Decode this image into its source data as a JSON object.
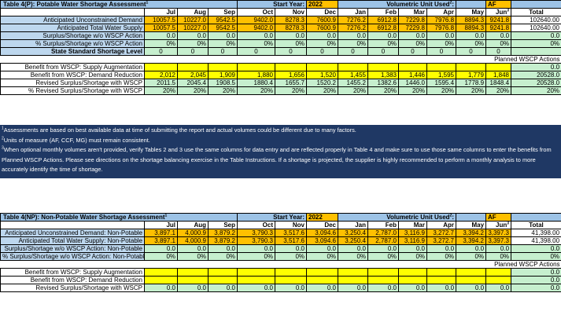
{
  "table_p": {
    "title": "Table 4(P): Potable Water Shortage Assessment",
    "title_sup": "1",
    "start_year_label": "Start Year:",
    "start_year": "2022",
    "unit_label": "Volumetric Unit Used",
    "unit_sup": "2",
    "unit_colon": ":",
    "unit": "AF",
    "months": [
      "Jul",
      "Aug",
      "Sep",
      "Oct",
      "Nov",
      "Dec",
      "Jan",
      "Feb",
      "Mar",
      "Apr",
      "May",
      "Jun"
    ],
    "jun_sup": "3",
    "total_label": "Total",
    "rows": {
      "demand": {
        "label": "Anticipated Unconstrained Demand",
        "values": [
          "10057.5",
          "10227.0",
          "9542.5",
          "9402.0",
          "8278.3",
          "7600.9",
          "7276.2",
          "6912.8",
          "7229.8",
          "7976.8",
          "8894.3",
          "9241.8"
        ],
        "total": "102640.00"
      },
      "supply": {
        "label": "Anticipated Total Water Supply",
        "values": [
          "10057.5",
          "10227.0",
          "9542.5",
          "9402.0",
          "8278.3",
          "7600.9",
          "7276.2",
          "6912.8",
          "7229.8",
          "7976.8",
          "8894.3",
          "9241.8"
        ],
        "total": "102640.00"
      },
      "surplus": {
        "label": "Surplus/Shortage w/o WSCP Action",
        "values": [
          "0.0",
          "0.0",
          "0.0",
          "0.0",
          "0.0",
          "0.0",
          "0.0",
          "0.0",
          "0.0",
          "0.0",
          "0.0",
          "0.0"
        ],
        "total": "0.0"
      },
      "pct_surplus": {
        "label": "% Surplus/Shortage w/o WSCP Action",
        "values": [
          "0%",
          "0%",
          "0%",
          "0%",
          "0%",
          "0%",
          "0%",
          "0%",
          "0%",
          "0%",
          "0%",
          "0%"
        ],
        "total": "0%"
      },
      "level": {
        "label": "State Standard Shortage Level",
        "values": [
          "0",
          "0",
          "0",
          "0",
          "0",
          "0",
          "0",
          "0",
          "0",
          "0",
          "0",
          "0"
        ],
        "total": ""
      },
      "planned": {
        "label": "Planned WSCP Actions"
      },
      "supply_aug": {
        "label": "Benefit from WSCP:  Supply Augmentation",
        "values": [
          "",
          "",
          "",
          "",
          "",
          "",
          "",
          "",
          "",
          "",
          "",
          ""
        ],
        "total": "0.0"
      },
      "demand_red": {
        "label": "Benefit from WSCP:  Demand Reduction",
        "values": [
          "2,012",
          "2,045",
          "1,909",
          "1,880",
          "1,656",
          "1,520",
          "1,455",
          "1,383",
          "1,446",
          "1,595",
          "1,779",
          "1,848"
        ],
        "total": "20528.0"
      },
      "revised": {
        "label": "Revised Surplus/Shortage with WSCP",
        "values": [
          "2011.5",
          "2045.4",
          "1908.5",
          "1880.4",
          "1655.7",
          "1520.2",
          "1455.2",
          "1382.6",
          "1446.0",
          "1595.4",
          "1778.9",
          "1848.4"
        ],
        "total": "20528.0"
      },
      "pct_revised": {
        "label": "% Revised Surplus/Shortage with WSCP",
        "values": [
          "20%",
          "20%",
          "20%",
          "20%",
          "20%",
          "20%",
          "20%",
          "20%",
          "20%",
          "20%",
          "20%",
          "20%"
        ],
        "total": "20%"
      }
    },
    "notes": [
      {
        "sup": "1",
        "text": "Assessments are based on best available data at time of submitting the report and actual volumes could be different due to many factors."
      },
      {
        "sup": "2",
        "text": "Units of measure (AF, CCF, MG) must remain consistent."
      },
      {
        "sup": "3",
        "text": "When optional monthly volumes aren't provided, verify Tables 2 and 3 use the same columns for data entry and are reflected properly in Table 4 and make sure to use those same columns to enter the benefits from Planned WSCP Actions. Please see directions on the shortage balancing exercise in the Table Instructions. If a shortage is projected, the supplier is highly recommended to perform a monthly analysis to more accurately identify the time of shortage."
      }
    ]
  },
  "table_np": {
    "title": "Table 4(NP): Non-Potable Water Shortage Assessment",
    "title_sup": "1",
    "start_year_label": "Start Year:",
    "start_year": "2022",
    "unit_label": "Volumetric Unit Used",
    "unit_sup": "2",
    "unit_colon": ":",
    "unit": "AF",
    "months": [
      "Jul",
      "Aug",
      "Sep",
      "Oct",
      "Nov",
      "Dec",
      "Jan",
      "Feb",
      "Mar",
      "Apr",
      "May",
      "Jun"
    ],
    "jun_sup": "3",
    "total_label": "Total",
    "rows": {
      "demand": {
        "label": "Anticipated Unconstrained Demand: Non-Potable",
        "values": [
          "3,897.1",
          "4,000.9",
          "3,879.2",
          "3,790.3",
          "3,517.6",
          "3,094.6",
          "3,250.4",
          "2,787.0",
          "3,116.9",
          "3,272.7",
          "3,394.2",
          "3,397.3"
        ],
        "total": "41,398.00"
      },
      "supply": {
        "label": "Anticipated Total Water Supply: Non-Potable",
        "values": [
          "3,897.1",
          "4,000.9",
          "3,879.2",
          "3,790.3",
          "3,517.6",
          "3,094.6",
          "3,250.4",
          "2,787.0",
          "3,116.9",
          "3,272.7",
          "3,394.2",
          "3,397.3"
        ],
        "total": "41,398.00"
      },
      "surplus": {
        "label": "Surplus/Shortage w/o WSCP Action: Non-Potable",
        "values": [
          "0.0",
          "0.0",
          "0.0",
          "0.0",
          "0.0",
          "0.0",
          "0.0",
          "0.0",
          "0.0",
          "0.0",
          "0.0",
          "0.0"
        ],
        "total": "0.0"
      },
      "pct_surplus": {
        "label": "% Surplus/Shortage w/o WSCP Action: Non-Potable",
        "values": [
          "0%",
          "0%",
          "0%",
          "0%",
          "0%",
          "0%",
          "0%",
          "0%",
          "0%",
          "0%",
          "0%",
          "0%"
        ],
        "total": "0%"
      },
      "planned": {
        "label": "Planned WSCP Actions"
      },
      "supply_aug": {
        "label": "Benefit from WSCP:  Supply Augmentation",
        "values": [
          "",
          "",
          "",
          "",
          "",
          "",
          "",
          "",
          "",
          "",
          "",
          ""
        ],
        "total": "0.0"
      },
      "demand_red": {
        "label": "Benefit from WSCP:  Demand Reduction",
        "values": [
          "",
          "",
          "",
          "",
          "",
          "",
          "",
          "",
          "",
          "",
          "",
          ""
        ],
        "total": "0.0"
      },
      "revised": {
        "label": "Revised Surplus/Shortage with WSCP",
        "values": [
          "0.0",
          "0.0",
          "0.0",
          "0.0",
          "0.0",
          "0.0",
          "0.0",
          "0.0",
          "0.0",
          "0.0",
          "0.0",
          "0.0"
        ],
        "total": "0.0"
      }
    }
  },
  "colors": {
    "header_blue": "#9dc3e6",
    "label_blue": "#bdd7ee",
    "orange": "#ffc000",
    "green": "#c6efce",
    "yellow": "#ffff00",
    "note_navy": "#1f3864"
  }
}
